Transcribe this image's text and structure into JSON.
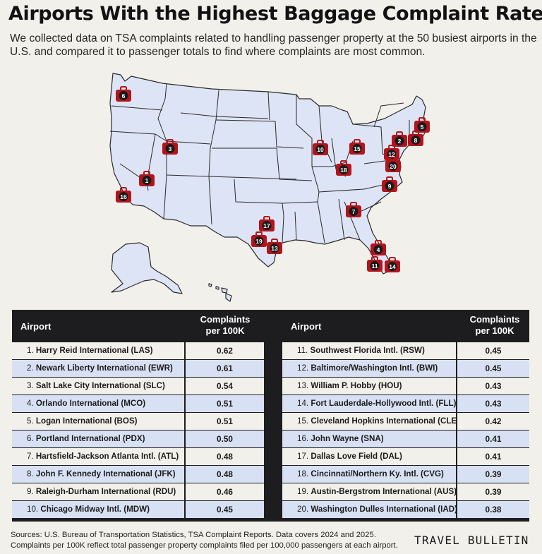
{
  "header": {
    "title": "Airports With the Highest Baggage Complaint Rates",
    "subtitle": "We collected data on TSA complaints related to handling passenger property at the 50 busiest airports in the U.S. and compared it to passenger totals to find where complaints are most common."
  },
  "map": {
    "fill_color": "#dde4f5",
    "border_color": "#2a2a2a",
    "marker_color": "#b3141c",
    "markers": [
      "1",
      "2",
      "3",
      "4",
      "5",
      "6",
      "7",
      "8",
      "9",
      "10",
      "11",
      "12",
      "13",
      "14",
      "15",
      "16",
      "17",
      "18",
      "19",
      "20"
    ],
    "marker_icon": "suitcase-icon"
  },
  "table": {
    "col_airport": "Airport",
    "col_rate": "Complaints per 100K",
    "rows_left": [
      {
        "rank": "1.",
        "name": "Harry Reid International (LAS)",
        "rate": "0.62"
      },
      {
        "rank": "2.",
        "name": "Newark Liberty International (EWR)",
        "rate": "0.61"
      },
      {
        "rank": "3.",
        "name": "Salt Lake City International (SLC)",
        "rate": "0.54"
      },
      {
        "rank": "4.",
        "name": "Orlando International (MCO)",
        "rate": "0.51"
      },
      {
        "rank": "5.",
        "name": "Logan International  (BOS)",
        "rate": "0.51"
      },
      {
        "rank": "6.",
        "name": "Portland International (PDX)",
        "rate": "0.50"
      },
      {
        "rank": "7.",
        "name": "Hartsfield-Jackson Atlanta Intl. (ATL)",
        "rate": "0.48"
      },
      {
        "rank": "8.",
        "name": "John F. Kennedy International (JFK)",
        "rate": "0.48"
      },
      {
        "rank": "9.",
        "name": "Raleigh-Durham International (RDU)",
        "rate": "0.46"
      },
      {
        "rank": "10.",
        "name": "Chicago Midway Intl. (MDW)",
        "rate": "0.45"
      }
    ],
    "rows_right": [
      {
        "rank": "11.",
        "name": "Southwest Florida Intl. (RSW)",
        "rate": "0.45"
      },
      {
        "rank": "12.",
        "name": "Baltimore/Washington Intl. (BWI)",
        "rate": "0.45"
      },
      {
        "rank": "13.",
        "name": "William P. Hobby  (HOU)",
        "rate": "0.43"
      },
      {
        "rank": "14.",
        "name": "Fort Lauderdale-Hollywood Intl. (FLL)",
        "rate": "0.43"
      },
      {
        "rank": "15.",
        "name": "Cleveland Hopkins International (CLE)",
        "rate": "0.42"
      },
      {
        "rank": "16.",
        "name": "John Wayne (SNA)",
        "rate": "0.41"
      },
      {
        "rank": "17.",
        "name": "Dallas Love Field (DAL)",
        "rate": "0.41"
      },
      {
        "rank": "18.",
        "name": "Cincinnati/Northern Ky. Intl. (CVG)",
        "rate": "0.39"
      },
      {
        "rank": "19.",
        "name": "Austin-Bergstrom International (AUS)",
        "rate": "0.39"
      },
      {
        "rank": "20.",
        "name": "Washington Dulles International (IAD)",
        "rate": "0.38"
      }
    ]
  },
  "footer": {
    "source_line1": "Sources: U.S. Bureau of Transportation Statistics, TSA Complaint Reports. Data covers 2024 and 2025.",
    "source_line2": "Complaints per 100K reflect total passenger property complaints filed per 100,000 passengers at each airport.",
    "brand": "TRAVEL BULLETIN"
  }
}
